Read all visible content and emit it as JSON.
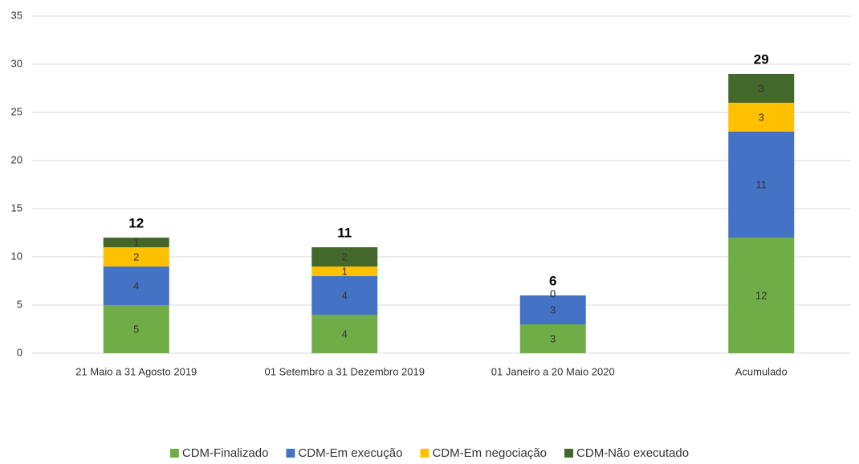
{
  "chart_data": {
    "type": "stacked_bar",
    "categories": [
      "21 Maio a 31 Agosto 2019",
      "01 Setembro a 31 Dezembro 2019",
      "01 Janeiro a 20 Maio 2020",
      "Acumulado"
    ],
    "series": [
      {
        "name": "CDM-Finalizado",
        "color": "#70ad47",
        "values": [
          5,
          4,
          3,
          12
        ]
      },
      {
        "name": "CDM-Em execução",
        "color": "#4472c4",
        "values": [
          4,
          4,
          3,
          11
        ]
      },
      {
        "name": "CDM-Em negociação",
        "color": "#ffc000",
        "values": [
          2,
          1,
          0,
          3
        ]
      },
      {
        "name": "CDM-Não executado",
        "color": "#43682b",
        "values": [
          1,
          2,
          0,
          3
        ]
      }
    ],
    "totals": [
      12,
      11,
      6,
      29
    ],
    "ylim": [
      0,
      35
    ],
    "yticks": [
      0,
      5,
      10,
      15,
      20,
      25,
      30,
      35
    ],
    "grid": true,
    "legend": "bottom"
  }
}
